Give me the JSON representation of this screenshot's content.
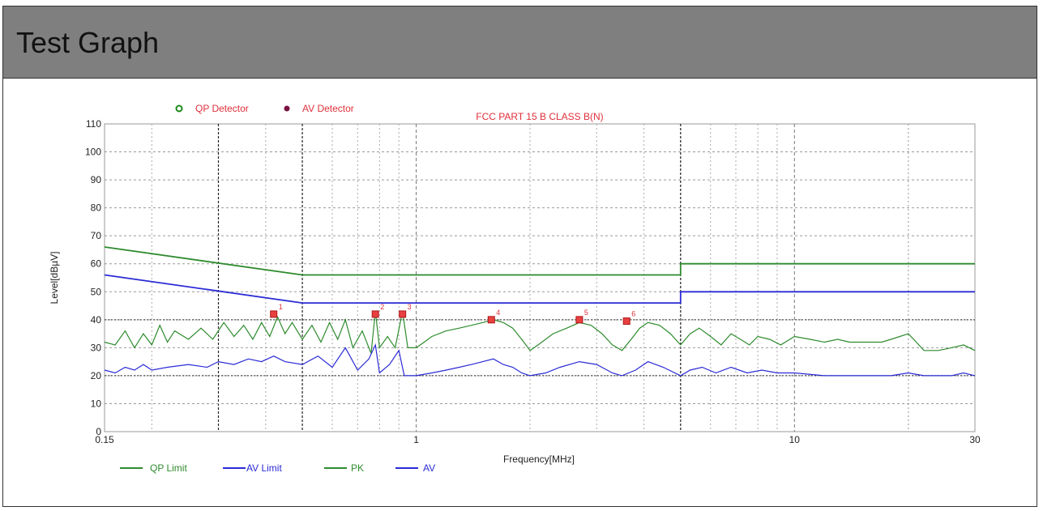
{
  "header": {
    "title": "Test Graph"
  },
  "chart_data": {
    "type": "line",
    "title": "FCC PART 15 B CLASS B(N)",
    "xlabel": "Frequency[MHz]",
    "ylabel": "Level[dBµV]",
    "xscale": "log",
    "xlim": [
      0.15,
      30
    ],
    "ylim": [
      0,
      110
    ],
    "grid": true,
    "x_ticks": [
      {
        "value": 0.15,
        "label": "0.15"
      },
      {
        "value": 1,
        "label": "1"
      },
      {
        "value": 10,
        "label": "10"
      },
      {
        "value": 30,
        "label": "30"
      }
    ],
    "y_ticks": [
      0,
      10,
      20,
      30,
      40,
      50,
      60,
      70,
      80,
      90,
      100,
      110
    ],
    "detector_legend": [
      {
        "name": "QP Detector",
        "color": "#1a8a1a",
        "marker": "circle"
      },
      {
        "name": "AV Detector",
        "color": "#7a1040",
        "marker": "dot"
      }
    ],
    "legend": [
      {
        "name": "QP Limit",
        "color": "#2e8b2e"
      },
      {
        "name": "AV Limit",
        "color": "#2b2bd6"
      },
      {
        "name": "PK",
        "color": "#2e8b2e"
      },
      {
        "name": "AV",
        "color": "#2b2bd6"
      }
    ],
    "limits": {
      "qp": [
        [
          0.15,
          66
        ],
        [
          0.5,
          56
        ],
        [
          5,
          56
        ],
        [
          5,
          60
        ],
        [
          30,
          60
        ]
      ],
      "av": [
        [
          0.15,
          56
        ],
        [
          0.5,
          46
        ],
        [
          5,
          46
        ],
        [
          5,
          50
        ],
        [
          30,
          50
        ]
      ]
    },
    "pk_series": [
      [
        0.15,
        32
      ],
      [
        0.16,
        31
      ],
      [
        0.17,
        36
      ],
      [
        0.18,
        30
      ],
      [
        0.19,
        35
      ],
      [
        0.2,
        31
      ],
      [
        0.21,
        38
      ],
      [
        0.22,
        32
      ],
      [
        0.23,
        36
      ],
      [
        0.25,
        33
      ],
      [
        0.27,
        37
      ],
      [
        0.29,
        33
      ],
      [
        0.31,
        39
      ],
      [
        0.33,
        34
      ],
      [
        0.35,
        38
      ],
      [
        0.37,
        33
      ],
      [
        0.39,
        39
      ],
      [
        0.41,
        34
      ],
      [
        0.43,
        41
      ],
      [
        0.45,
        35
      ],
      [
        0.47,
        39
      ],
      [
        0.5,
        33
      ],
      [
        0.53,
        38
      ],
      [
        0.56,
        32
      ],
      [
        0.59,
        39
      ],
      [
        0.62,
        33
      ],
      [
        0.65,
        40
      ],
      [
        0.68,
        30
      ],
      [
        0.72,
        36
      ],
      [
        0.76,
        28
      ],
      [
        0.78,
        43
      ],
      [
        0.8,
        30
      ],
      [
        0.84,
        34
      ],
      [
        0.88,
        30
      ],
      [
        0.92,
        43
      ],
      [
        0.95,
        30
      ],
      [
        1.0,
        30
      ],
      [
        1.05,
        32
      ],
      [
        1.1,
        34
      ],
      [
        1.2,
        36
      ],
      [
        1.3,
        37
      ],
      [
        1.4,
        38
      ],
      [
        1.5,
        39
      ],
      [
        1.6,
        40
      ],
      [
        1.7,
        39
      ],
      [
        1.8,
        37
      ],
      [
        1.9,
        33
      ],
      [
        2.0,
        29
      ],
      [
        2.1,
        31
      ],
      [
        2.3,
        35
      ],
      [
        2.5,
        37
      ],
      [
        2.7,
        39
      ],
      [
        2.9,
        38
      ],
      [
        3.1,
        35
      ],
      [
        3.3,
        31
      ],
      [
        3.5,
        29
      ],
      [
        3.7,
        33
      ],
      [
        3.9,
        37
      ],
      [
        4.1,
        39
      ],
      [
        4.4,
        38
      ],
      [
        4.7,
        35
      ],
      [
        5.0,
        31
      ],
      [
        5.3,
        35
      ],
      [
        5.6,
        37
      ],
      [
        6.0,
        34
      ],
      [
        6.4,
        31
      ],
      [
        6.8,
        35
      ],
      [
        7.2,
        33
      ],
      [
        7.6,
        31
      ],
      [
        8.0,
        34
      ],
      [
        8.6,
        33
      ],
      [
        9.2,
        31
      ],
      [
        10,
        34
      ],
      [
        11,
        33
      ],
      [
        12,
        32
      ],
      [
        13,
        33
      ],
      [
        14,
        32
      ],
      [
        15,
        32
      ],
      [
        16,
        32
      ],
      [
        17,
        32
      ],
      [
        18,
        33
      ],
      [
        19,
        34
      ],
      [
        20,
        35
      ],
      [
        21,
        32
      ],
      [
        22,
        29
      ],
      [
        24,
        29
      ],
      [
        26,
        30
      ],
      [
        28,
        31
      ],
      [
        30,
        29
      ]
    ],
    "av_series": [
      [
        0.15,
        22
      ],
      [
        0.16,
        21
      ],
      [
        0.17,
        23
      ],
      [
        0.18,
        22
      ],
      [
        0.19,
        24
      ],
      [
        0.2,
        22
      ],
      [
        0.22,
        23
      ],
      [
        0.25,
        24
      ],
      [
        0.28,
        23
      ],
      [
        0.3,
        25
      ],
      [
        0.33,
        24
      ],
      [
        0.36,
        26
      ],
      [
        0.39,
        25
      ],
      [
        0.42,
        27
      ],
      [
        0.45,
        25
      ],
      [
        0.5,
        24
      ],
      [
        0.55,
        27
      ],
      [
        0.6,
        23
      ],
      [
        0.65,
        30
      ],
      [
        0.7,
        22
      ],
      [
        0.75,
        26
      ],
      [
        0.78,
        31
      ],
      [
        0.8,
        21
      ],
      [
        0.85,
        24
      ],
      [
        0.9,
        29
      ],
      [
        0.93,
        20
      ],
      [
        1.0,
        20
      ],
      [
        1.1,
        21
      ],
      [
        1.2,
        22
      ],
      [
        1.3,
        23
      ],
      [
        1.4,
        24
      ],
      [
        1.5,
        25
      ],
      [
        1.6,
        26
      ],
      [
        1.7,
        24
      ],
      [
        1.8,
        23
      ],
      [
        1.9,
        21
      ],
      [
        2.0,
        20
      ],
      [
        2.2,
        21
      ],
      [
        2.4,
        23
      ],
      [
        2.7,
        25
      ],
      [
        3.0,
        24
      ],
      [
        3.3,
        21
      ],
      [
        3.5,
        20
      ],
      [
        3.8,
        22
      ],
      [
        4.1,
        25
      ],
      [
        4.5,
        23
      ],
      [
        5.0,
        20
      ],
      [
        5.3,
        22
      ],
      [
        5.7,
        23
      ],
      [
        6.2,
        21
      ],
      [
        6.8,
        23
      ],
      [
        7.5,
        21
      ],
      [
        8.2,
        22
      ],
      [
        9.0,
        21
      ],
      [
        10,
        21
      ],
      [
        12,
        20
      ],
      [
        14,
        20
      ],
      [
        16,
        20
      ],
      [
        18,
        20
      ],
      [
        20,
        21
      ],
      [
        22,
        20
      ],
      [
        24,
        20
      ],
      [
        26,
        20
      ],
      [
        28,
        21
      ],
      [
        30,
        20
      ]
    ],
    "markers": [
      {
        "label": "1",
        "x": 0.42,
        "y": 42
      },
      {
        "label": "2",
        "x": 0.78,
        "y": 42
      },
      {
        "label": "3",
        "x": 0.92,
        "y": 42
      },
      {
        "label": "4",
        "x": 1.58,
        "y": 40
      },
      {
        "label": "5",
        "x": 2.7,
        "y": 40
      },
      {
        "label": "6",
        "x": 3.6,
        "y": 39.5
      }
    ]
  }
}
